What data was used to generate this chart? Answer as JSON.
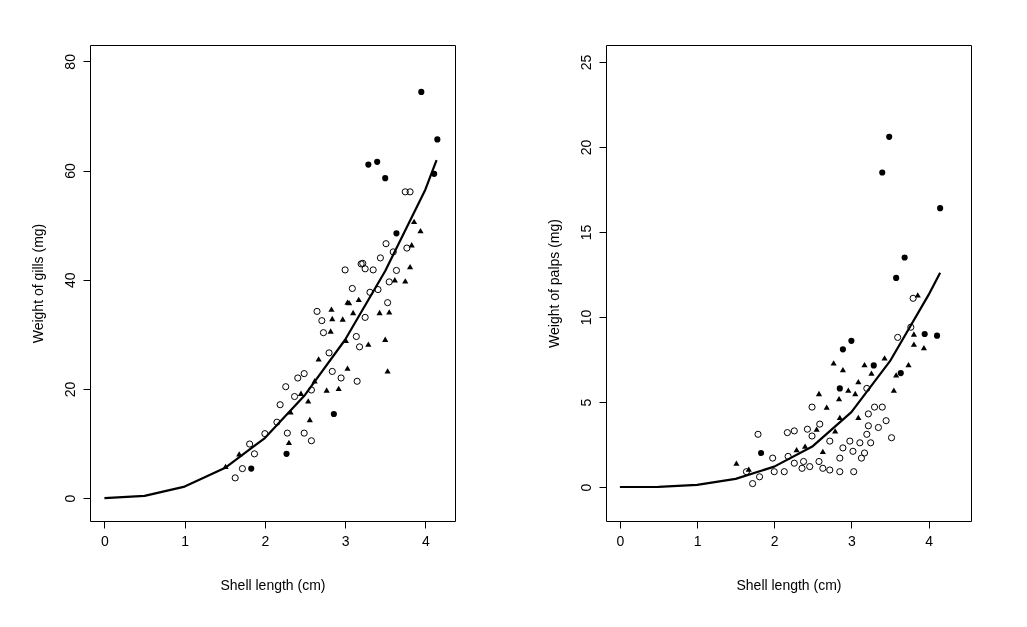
{
  "chart_data": [
    {
      "type": "scatter",
      "xlabel": "Shell length (cm)",
      "ylabel": "Weight of gills (mg)",
      "xlim": [
        -0.18,
        4.37
      ],
      "ylim": [
        -4.2,
        83
      ],
      "xticks": [
        0,
        1,
        2,
        3,
        4
      ],
      "yticks": [
        0,
        20,
        40,
        60,
        80
      ],
      "grid": false,
      "series": [
        {
          "marker": "circle",
          "color": "#000000",
          "x": [
            3.75,
            3.81,
            3.51,
            3.77,
            3.6,
            3.44,
            3.22,
            3.25,
            3.35,
            3.0,
            3.64,
            3.55,
            3.09,
            3.31,
            3.41,
            3.53,
            3.2,
            2.65,
            2.71,
            3.25,
            2.73,
            3.14,
            2.49,
            2.26,
            3.15,
            2.41,
            2.19,
            2.15,
            2.28,
            2.49,
            2.58,
            1.81,
            1.87,
            1.72,
            1.63,
            2.0,
            2.37,
            2.95,
            2.84,
            3.18,
            2.8,
            2.58
          ],
          "values": [
            56.1,
            56.1,
            46.6,
            45.8,
            45.1,
            44.0,
            43.0,
            42.0,
            41.8,
            41.8,
            41.7,
            39.6,
            38.4,
            37.7,
            38.2,
            35.8,
            42.9,
            34.2,
            32.5,
            33.1,
            30.3,
            29.6,
            22.8,
            20.4,
            21.4,
            22.0,
            17.1,
            13.9,
            11.9,
            11.9,
            10.5,
            9.9,
            8.1,
            5.4,
            3.7,
            11.8,
            18.6,
            22.0,
            23.2,
            27.7,
            26.6,
            19.8
          ]
        },
        {
          "marker": "triangle",
          "color": "#000000",
          "x": [
            3.86,
            3.94,
            3.83,
            3.81,
            3.62,
            3.75,
            3.17,
            3.03,
            3.05,
            2.83,
            2.84,
            3.43,
            3.55,
            2.97,
            3.1,
            3.5,
            3.53,
            3.29,
            3.01,
            2.82,
            2.67,
            3.03,
            2.77,
            2.92,
            2.62,
            2.54,
            2.56,
            2.3,
            2.32,
            1.68,
            1.51,
            2.45
          ],
          "values": [
            50.7,
            49.0,
            46.4,
            42.4,
            40.0,
            39.8,
            36.4,
            35.9,
            35.8,
            34.6,
            32.9,
            34.0,
            34.1,
            32.8,
            34.0,
            29.1,
            23.3,
            28.2,
            28.9,
            30.6,
            25.5,
            23.8,
            19.8,
            20.1,
            21.5,
            17.8,
            14.4,
            10.2,
            15.8,
            8.1,
            5.8,
            19.2
          ]
        },
        {
          "marker": "circle",
          "color": "#000000",
          "x": [
            3.95,
            4.15,
            3.29,
            3.4,
            3.5,
            3.64,
            4.11,
            2.86,
            2.27,
            1.83
          ],
          "values": [
            74.4,
            65.7,
            61.1,
            61.6,
            58.6,
            48.5,
            59.4,
            15.4,
            8.1,
            5.4
          ]
        },
        {
          "type": "line",
          "line_style": "solid",
          "color": "#000000",
          "x": [
            0,
            0.5,
            1,
            1.5,
            2,
            2.5,
            3,
            3.5,
            4,
            4.14
          ],
          "values": [
            0,
            0.4,
            2.1,
            5.5,
            11.0,
            18.9,
            29.0,
            41.6,
            56.5,
            61.9
          ]
        }
      ]
    },
    {
      "type": "scatter",
      "xlabel": "Shell length (cm)",
      "ylabel": "Weight of palps (mg)",
      "xlim": [
        -0.18,
        4.55
      ],
      "ylim": [
        -2,
        26
      ],
      "xticks": [
        0,
        1,
        2,
        3,
        4
      ],
      "yticks": [
        0,
        5,
        10,
        15,
        20,
        25
      ],
      "grid": false,
      "series": [
        {
          "marker": "circle",
          "color": "#000000",
          "x": [
            3.8,
            3.77,
            3.6,
            3.2,
            2.49,
            3.3,
            3.4,
            3.22,
            3.45,
            3.35,
            3.22,
            3.52,
            3.2,
            3.25,
            3.11,
            2.98,
            2.89,
            3.17,
            3.13,
            3.02,
            2.85,
            3.03,
            2.85,
            2.72,
            2.63,
            2.58,
            2.46,
            2.36,
            2.38,
            2.26,
            2.18,
            2.17,
            2.26,
            1.79,
            1.98,
            2.0,
            2.13,
            1.81,
            1.72,
            1.64,
            2.49,
            2.59,
            2.72,
            2.43
          ],
          "values": [
            11.1,
            9.4,
            8.8,
            5.8,
            4.7,
            4.7,
            4.7,
            4.3,
            3.9,
            3.5,
            3.6,
            2.9,
            3.1,
            2.6,
            2.6,
            2.7,
            2.3,
            2.0,
            1.7,
            2.1,
            1.7,
            0.9,
            0.9,
            1.0,
            1.1,
            1.5,
            1.2,
            1.1,
            1.5,
            1.4,
            1.8,
            3.2,
            3.3,
            3.1,
            1.7,
            0.9,
            0.9,
            0.6,
            0.2,
            0.9,
            3.0,
            3.7,
            2.7,
            3.4
          ]
        },
        {
          "marker": "triangle",
          "color": "#000000",
          "x": [
            3.86,
            3.81,
            3.94,
            3.81,
            2.77,
            2.89,
            3.17,
            3.26,
            3.43,
            3.74,
            3.58,
            3.09,
            3.55,
            2.58,
            2.96,
            3.05,
            2.84,
            2.68,
            2.85,
            3.09,
            2.79,
            2.55,
            2.29,
            2.63,
            1.51,
            1.67,
            2.4
          ],
          "values": [
            11.3,
            9.0,
            8.2,
            8.4,
            7.3,
            6.9,
            7.2,
            6.7,
            7.6,
            7.2,
            6.6,
            6.2,
            5.7,
            5.5,
            5.7,
            5.5,
            5.2,
            4.7,
            4.1,
            4.1,
            3.3,
            3.4,
            2.2,
            2.1,
            1.4,
            1.05,
            2.4
          ]
        },
        {
          "marker": "circle",
          "color": "#000000",
          "x": [
            3.49,
            3.4,
            4.15,
            3.69,
            3.58,
            3.95,
            4.11,
            3.0,
            2.89,
            3.29,
            3.64,
            2.85,
            1.83
          ],
          "values": [
            20.6,
            18.5,
            16.4,
            13.5,
            12.3,
            9.0,
            8.9,
            8.6,
            8.1,
            7.15,
            6.7,
            5.8,
            2.0
          ]
        },
        {
          "type": "line",
          "line_style": "solid",
          "color": "#000000",
          "x": [
            0,
            0.5,
            1,
            1.5,
            2,
            2.5,
            3,
            3.5,
            4,
            4.15
          ],
          "values": [
            0,
            0.01,
            0.13,
            0.48,
            1.2,
            2.4,
            4.4,
            7.4,
            11.3,
            12.6
          ]
        }
      ]
    }
  ]
}
